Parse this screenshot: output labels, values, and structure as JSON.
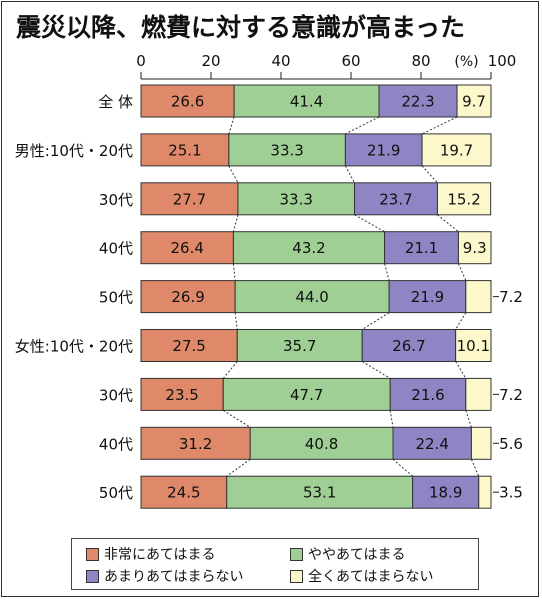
{
  "chart_data": {
    "type": "bar",
    "orientation": "horizontal",
    "stacked": true,
    "title": "震災以降、燃費に対する意識が高まった",
    "unit_label": "(%)",
    "xlim": [
      0,
      100
    ],
    "x_ticks": [
      "0",
      "20",
      "40",
      "60",
      "80",
      "100"
    ],
    "categories": [
      "全 体",
      "男性:10代・20代",
      "30代",
      "40代",
      "50代",
      "女性:10代・20代",
      "30代",
      "40代",
      "50代"
    ],
    "series": [
      {
        "name": "非常にあてはまる",
        "color": "#E0896A",
        "values": [
          26.6,
          25.1,
          27.7,
          26.4,
          26.9,
          27.5,
          23.5,
          31.2,
          24.5
        ],
        "labels": [
          "26.6",
          "25.1",
          "27.7",
          "26.4",
          "26.9",
          "27.5",
          "23.5",
          "31.2",
          "24.5"
        ]
      },
      {
        "name": "ややあてはまる",
        "color": "#9FCF94",
        "values": [
          41.4,
          33.3,
          33.3,
          43.2,
          44.0,
          35.7,
          47.7,
          40.8,
          53.1
        ],
        "labels": [
          "41.4",
          "33.3",
          "33.3",
          "43.2",
          "44.0",
          "35.7",
          "47.7",
          "40.8",
          "53.1"
        ]
      },
      {
        "name": "あまりあてはまらない",
        "color": "#8E86C4",
        "values": [
          22.3,
          21.9,
          23.7,
          21.1,
          21.9,
          26.7,
          21.6,
          22.4,
          18.9
        ],
        "labels": [
          "22.3",
          "21.9",
          "23.7",
          "21.1",
          "21.9",
          "26.7",
          "21.6",
          "22.4",
          "18.9"
        ]
      },
      {
        "name": "全くあてはまらない",
        "color": "#FCF8CC",
        "values": [
          9.7,
          19.7,
          15.2,
          9.3,
          7.2,
          10.1,
          7.2,
          5.6,
          3.5
        ],
        "labels": [
          "9.7",
          "19.7",
          "15.2",
          "9.3",
          "7.2",
          "10.1",
          "7.2",
          "5.6",
          "3.5"
        ],
        "label_outside": [
          false,
          false,
          false,
          false,
          true,
          false,
          true,
          true,
          true
        ]
      }
    ],
    "legend": [
      "非常にあてはまる",
      "ややあてはまる",
      "あまりあてはまらない",
      "全くあてはまらない"
    ],
    "legend_position": "bottom",
    "grid": false
  }
}
